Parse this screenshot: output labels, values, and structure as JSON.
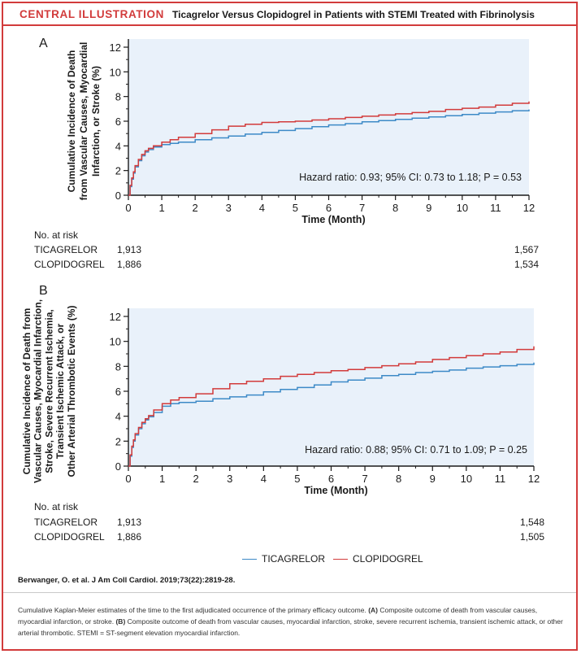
{
  "header": {
    "tag": "CENTRAL ILLUSTRATION",
    "title": "Ticagrelor Versus Clopidogrel in Patients with STEMI Treated with Fibrinolysis"
  },
  "colors": {
    "ticagrelor": "#3d8ac7",
    "clopidogrel": "#d23b3b",
    "plot_bg": "#e9f1fa",
    "accent": "#d23b3b"
  },
  "chart_data": [
    {
      "type": "line",
      "panel": "A",
      "title": "",
      "ylabel": "Cumulative Incidence of Death from Vascular Causes, Myocardial Infarction, or Stroke (%)",
      "ylabel_lines": [
        "Cumulative Incidence of Death",
        "from Vascular Causes, Myocardial",
        "Infarction, or Stroke (%)"
      ],
      "xlabel": "Time (Month)",
      "xlim": [
        0,
        12
      ],
      "ylim": [
        0,
        12
      ],
      "xticks": [
        0,
        1,
        2,
        3,
        4,
        5,
        6,
        7,
        8,
        9,
        10,
        11,
        12
      ],
      "yticks": [
        0,
        2,
        4,
        6,
        8,
        10,
        12
      ],
      "annotation": "Hazard ratio: 0.93; 95% CI: 0.73 to 1.18; P = 0.53",
      "series": [
        {
          "name": "TICAGRELOR",
          "color": "#3d8ac7",
          "x": [
            0,
            0.05,
            0.1,
            0.15,
            0.2,
            0.3,
            0.4,
            0.5,
            0.6,
            0.75,
            1,
            1.25,
            1.5,
            2,
            2.5,
            3,
            3.5,
            4,
            4.5,
            5,
            5.5,
            6,
            6.5,
            7,
            7.5,
            8,
            8.5,
            9,
            9.5,
            10,
            10.5,
            11,
            11.5,
            12
          ],
          "y": [
            0,
            0.7,
            1.3,
            1.8,
            2.3,
            2.8,
            3.2,
            3.5,
            3.7,
            3.9,
            4.1,
            4.2,
            4.3,
            4.5,
            4.65,
            4.8,
            4.95,
            5.1,
            5.25,
            5.4,
            5.55,
            5.7,
            5.8,
            5.95,
            6.05,
            6.15,
            6.25,
            6.35,
            6.45,
            6.55,
            6.65,
            6.75,
            6.85,
            6.95
          ]
        },
        {
          "name": "CLOPIDOGREL",
          "color": "#d23b3b",
          "x": [
            0,
            0.05,
            0.1,
            0.15,
            0.2,
            0.3,
            0.4,
            0.5,
            0.6,
            0.75,
            1,
            1.25,
            1.5,
            2,
            2.5,
            3,
            3.5,
            4,
            4.5,
            5,
            5.5,
            6,
            6.5,
            7,
            7.5,
            8,
            8.5,
            9,
            9.5,
            10,
            10.5,
            11,
            11.5,
            12
          ],
          "y": [
            0,
            0.8,
            1.4,
            1.9,
            2.4,
            2.9,
            3.3,
            3.6,
            3.8,
            4.0,
            4.3,
            4.5,
            4.7,
            5.0,
            5.3,
            5.6,
            5.75,
            5.9,
            5.95,
            6.0,
            6.1,
            6.2,
            6.3,
            6.4,
            6.5,
            6.6,
            6.7,
            6.8,
            6.95,
            7.05,
            7.15,
            7.3,
            7.45,
            7.6
          ]
        }
      ],
      "risk_table": {
        "title": "No. at risk",
        "rows": [
          {
            "label": "TICAGRELOR",
            "start": "1,913",
            "end": "1,567"
          },
          {
            "label": "CLOPIDOGREL",
            "start": "1,886",
            "end": "1,534"
          }
        ]
      }
    },
    {
      "type": "line",
      "panel": "B",
      "title": "",
      "ylabel": "Cumulative Incidence of Death from Vascular Causes, Myocardial Infarction, Stroke, Severe Recurrent Ischemia, Transient Ischemic Attack, or Other Arterial Thrombotic Events (%)",
      "ylabel_lines": [
        "Cumulative Incidence of Death from",
        "Vascular Causes, Myocardial Infarction,",
        "Stroke, Severe Recurrent Ischemia,",
        "Transient Ischemic Attack, or",
        "Other Arterial Thrombotic Events (%)"
      ],
      "xlabel": "Time (Month)",
      "xlim": [
        0,
        12
      ],
      "ylim": [
        0,
        12
      ],
      "xticks": [
        0,
        1,
        2,
        3,
        4,
        5,
        6,
        7,
        8,
        9,
        10,
        11,
        12
      ],
      "yticks": [
        0,
        2,
        4,
        6,
        8,
        10,
        12
      ],
      "annotation": "Hazard ratio: 0.88; 95% CI: 0.71 to 1.09; P = 0.25",
      "series": [
        {
          "name": "TICAGRELOR",
          "color": "#3d8ac7",
          "x": [
            0,
            0.05,
            0.1,
            0.15,
            0.2,
            0.3,
            0.4,
            0.5,
            0.6,
            0.75,
            1,
            1.25,
            1.5,
            2,
            2.5,
            3,
            3.5,
            4,
            4.5,
            5,
            5.5,
            6,
            6.5,
            7,
            7.5,
            8,
            8.5,
            9,
            9.5,
            10,
            10.5,
            11,
            11.5,
            12
          ],
          "y": [
            0,
            0.8,
            1.5,
            2.0,
            2.5,
            3.0,
            3.4,
            3.7,
            3.95,
            4.3,
            4.8,
            5.0,
            5.1,
            5.2,
            5.4,
            5.55,
            5.7,
            5.95,
            6.15,
            6.3,
            6.5,
            6.75,
            6.9,
            7.05,
            7.25,
            7.35,
            7.5,
            7.6,
            7.7,
            7.85,
            7.95,
            8.05,
            8.15,
            8.3
          ]
        },
        {
          "name": "CLOPIDOGREL",
          "color": "#d23b3b",
          "x": [
            0,
            0.05,
            0.1,
            0.15,
            0.2,
            0.3,
            0.4,
            0.5,
            0.6,
            0.75,
            1,
            1.25,
            1.5,
            2,
            2.5,
            3,
            3.5,
            4,
            4.5,
            5,
            5.5,
            6,
            6.5,
            7,
            7.5,
            8,
            8.5,
            9,
            9.5,
            10,
            10.5,
            11,
            11.5,
            12
          ],
          "y": [
            0,
            0.9,
            1.6,
            2.1,
            2.6,
            3.1,
            3.5,
            3.8,
            4.05,
            4.5,
            5.0,
            5.3,
            5.5,
            5.8,
            6.2,
            6.6,
            6.8,
            7.0,
            7.2,
            7.35,
            7.5,
            7.65,
            7.75,
            7.9,
            8.05,
            8.2,
            8.35,
            8.55,
            8.7,
            8.85,
            9.0,
            9.15,
            9.35,
            9.6
          ]
        }
      ],
      "risk_table": {
        "title": "No. at risk",
        "rows": [
          {
            "label": "TICAGRELOR",
            "start": "1,913",
            "end": "1,548"
          },
          {
            "label": "CLOPIDOGREL",
            "start": "1,886",
            "end": "1,505"
          }
        ]
      }
    }
  ],
  "legend": {
    "items": [
      {
        "name": "TICAGRELOR",
        "color": "#3d8ac7"
      },
      {
        "name": "CLOPIDOGREL",
        "color": "#d23b3b"
      }
    ]
  },
  "citation": "Berwanger, O. et al. J Am Coll Cardiol. 2019;73(22):2819-28.",
  "caption": {
    "intro": "Cumulative Kaplan-Meier estimates of the time to the first adjudicated occurrence of the primary efficacy outcome. ",
    "a_tag": "(A)",
    "a_text": " Composite outcome of death from vascular causes, myocardial infarction, or stroke. ",
    "b_tag": "(B)",
    "b_text": " Composite outcome of death from vascular causes, myocardial infarction, stroke, severe recurrent ischemia, transient ischemic attack, or other arterial thrombotic. STEMI = ST-segment elevation myocardial infarction."
  }
}
